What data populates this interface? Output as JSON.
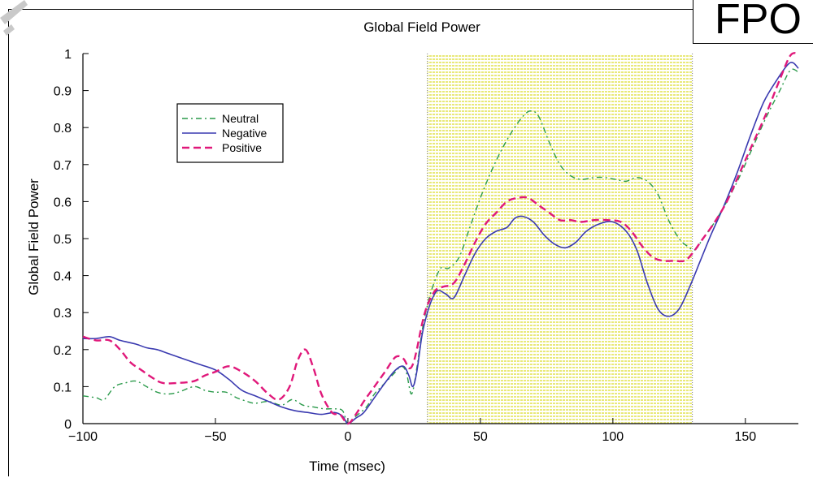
{
  "stamp": {
    "label": "FPO"
  },
  "chart_data": {
    "type": "line",
    "title": "Global Field Power",
    "xlabel": "Time (msec)",
    "ylabel": "Global Field Power",
    "xlim": [
      -100,
      170
    ],
    "ylim": [
      0,
      1
    ],
    "xticks": [
      -100,
      -50,
      0,
      50,
      100,
      150
    ],
    "xtick_labels": [
      "−100",
      "−50",
      "0",
      "50",
      "100",
      "150"
    ],
    "yticks": [
      0,
      0.1,
      0.2,
      0.3,
      0.4,
      0.5,
      0.6,
      0.7,
      0.8,
      0.9,
      1
    ],
    "ytick_labels": [
      "0",
      "0.1",
      "0.2",
      "0.3",
      "0.4",
      "0.5",
      "0.6",
      "0.7",
      "0.8",
      "0.9",
      "1"
    ],
    "grid": false,
    "legend_position": "top-left",
    "highlight_region": {
      "x": [
        30,
        130
      ],
      "color": "#e8e860"
    },
    "series": [
      {
        "name": "Neutral",
        "color": "#2a9a4a",
        "style": "dashdot",
        "points": [
          [
            -100,
            0.075
          ],
          [
            -95,
            0.07
          ],
          [
            -92,
            0.065
          ],
          [
            -88,
            0.1
          ],
          [
            -84,
            0.11
          ],
          [
            -80,
            0.115
          ],
          [
            -76,
            0.1
          ],
          [
            -72,
            0.085
          ],
          [
            -68,
            0.08
          ],
          [
            -64,
            0.085
          ],
          [
            -58,
            0.1
          ],
          [
            -54,
            0.09
          ],
          [
            -50,
            0.085
          ],
          [
            -46,
            0.085
          ],
          [
            -42,
            0.07
          ],
          [
            -38,
            0.06
          ],
          [
            -35,
            0.055
          ],
          [
            -30,
            0.06
          ],
          [
            -25,
            0.05
          ],
          [
            -21,
            0.065
          ],
          [
            -17,
            0.05
          ],
          [
            -13,
            0.045
          ],
          [
            -9,
            0.04
          ],
          [
            -5,
            0.04
          ],
          [
            -2,
            0.035
          ],
          [
            0,
            0.0
          ],
          [
            3,
            0.02
          ],
          [
            7,
            0.045
          ],
          [
            10,
            0.08
          ],
          [
            14,
            0.11
          ],
          [
            18,
            0.14
          ],
          [
            20,
            0.155
          ],
          [
            22,
            0.14
          ],
          [
            24,
            0.08
          ],
          [
            26,
            0.15
          ],
          [
            28,
            0.25
          ],
          [
            30,
            0.32
          ],
          [
            32,
            0.37
          ],
          [
            35,
            0.42
          ],
          [
            38,
            0.42
          ],
          [
            42,
            0.45
          ],
          [
            46,
            0.53
          ],
          [
            50,
            0.61
          ],
          [
            54,
            0.68
          ],
          [
            58,
            0.74
          ],
          [
            62,
            0.79
          ],
          [
            66,
            0.83
          ],
          [
            69,
            0.845
          ],
          [
            72,
            0.83
          ],
          [
            76,
            0.76
          ],
          [
            80,
            0.7
          ],
          [
            84,
            0.67
          ],
          [
            88,
            0.66
          ],
          [
            93,
            0.665
          ],
          [
            97,
            0.665
          ],
          [
            101,
            0.66
          ],
          [
            105,
            0.655
          ],
          [
            109,
            0.665
          ],
          [
            113,
            0.655
          ],
          [
            117,
            0.62
          ],
          [
            121,
            0.55
          ],
          [
            125,
            0.5
          ],
          [
            128,
            0.48
          ],
          [
            131,
            0.47
          ],
          [
            134,
            0.5
          ],
          [
            138,
            0.54
          ],
          [
            143,
            0.6
          ],
          [
            148,
            0.67
          ],
          [
            153,
            0.75
          ],
          [
            158,
            0.83
          ],
          [
            163,
            0.9
          ],
          [
            167,
            0.955
          ],
          [
            170,
            0.95
          ]
        ]
      },
      {
        "name": "Negative",
        "color": "#3a3ab0",
        "style": "solid",
        "points": [
          [
            -100,
            0.23
          ],
          [
            -95,
            0.23
          ],
          [
            -90,
            0.235
          ],
          [
            -86,
            0.225
          ],
          [
            -80,
            0.215
          ],
          [
            -76,
            0.205
          ],
          [
            -72,
            0.2
          ],
          [
            -68,
            0.19
          ],
          [
            -62,
            0.175
          ],
          [
            -56,
            0.16
          ],
          [
            -50,
            0.145
          ],
          [
            -45,
            0.12
          ],
          [
            -40,
            0.09
          ],
          [
            -35,
            0.075
          ],
          [
            -30,
            0.06
          ],
          [
            -25,
            0.045
          ],
          [
            -20,
            0.035
          ],
          [
            -15,
            0.03
          ],
          [
            -10,
            0.025
          ],
          [
            -5,
            0.03
          ],
          [
            -2,
            0.02
          ],
          [
            0,
            0.0
          ],
          [
            3,
            0.015
          ],
          [
            6,
            0.03
          ],
          [
            10,
            0.07
          ],
          [
            14,
            0.11
          ],
          [
            18,
            0.145
          ],
          [
            21,
            0.155
          ],
          [
            23,
            0.13
          ],
          [
            24.5,
            0.1
          ],
          [
            26,
            0.14
          ],
          [
            28,
            0.24
          ],
          [
            30,
            0.3
          ],
          [
            32,
            0.34
          ],
          [
            34,
            0.36
          ],
          [
            37,
            0.35
          ],
          [
            40,
            0.34
          ],
          [
            44,
            0.4
          ],
          [
            48,
            0.46
          ],
          [
            52,
            0.5
          ],
          [
            56,
            0.52
          ],
          [
            60,
            0.53
          ],
          [
            63,
            0.555
          ],
          [
            66,
            0.56
          ],
          [
            70,
            0.545
          ],
          [
            74,
            0.51
          ],
          [
            78,
            0.485
          ],
          [
            82,
            0.475
          ],
          [
            86,
            0.49
          ],
          [
            90,
            0.52
          ],
          [
            95,
            0.54
          ],
          [
            100,
            0.545
          ],
          [
            105,
            0.52
          ],
          [
            109,
            0.47
          ],
          [
            113,
            0.38
          ],
          [
            117,
            0.31
          ],
          [
            121,
            0.29
          ],
          [
            125,
            0.31
          ],
          [
            129,
            0.37
          ],
          [
            133,
            0.44
          ],
          [
            137,
            0.51
          ],
          [
            142,
            0.59
          ],
          [
            147,
            0.68
          ],
          [
            152,
            0.78
          ],
          [
            157,
            0.87
          ],
          [
            162,
            0.93
          ],
          [
            166,
            0.97
          ],
          [
            168,
            0.975
          ],
          [
            170,
            0.96
          ]
        ]
      },
      {
        "name": "Positive",
        "color": "#e0187a",
        "style": "dashed",
        "points": [
          [
            -100,
            0.235
          ],
          [
            -95,
            0.225
          ],
          [
            -90,
            0.225
          ],
          [
            -86,
            0.2
          ],
          [
            -82,
            0.165
          ],
          [
            -78,
            0.145
          ],
          [
            -74,
            0.125
          ],
          [
            -70,
            0.11
          ],
          [
            -64,
            0.11
          ],
          [
            -58,
            0.115
          ],
          [
            -54,
            0.13
          ],
          [
            -50,
            0.14
          ],
          [
            -45,
            0.155
          ],
          [
            -40,
            0.14
          ],
          [
            -35,
            0.115
          ],
          [
            -30,
            0.08
          ],
          [
            -26,
            0.065
          ],
          [
            -22,
            0.1
          ],
          [
            -19,
            0.17
          ],
          [
            -16,
            0.2
          ],
          [
            -13,
            0.15
          ],
          [
            -10,
            0.08
          ],
          [
            -6,
            0.03
          ],
          [
            -3,
            0.025
          ],
          [
            0,
            0.0
          ],
          [
            3,
            0.025
          ],
          [
            6,
            0.06
          ],
          [
            10,
            0.1
          ],
          [
            14,
            0.14
          ],
          [
            18,
            0.18
          ],
          [
            21,
            0.175
          ],
          [
            23,
            0.15
          ],
          [
            24.5,
            0.16
          ],
          [
            26,
            0.2
          ],
          [
            28,
            0.27
          ],
          [
            30,
            0.32
          ],
          [
            33,
            0.36
          ],
          [
            36,
            0.37
          ],
          [
            40,
            0.38
          ],
          [
            44,
            0.43
          ],
          [
            48,
            0.49
          ],
          [
            52,
            0.54
          ],
          [
            56,
            0.57
          ],
          [
            60,
            0.6
          ],
          [
            64,
            0.61
          ],
          [
            68,
            0.61
          ],
          [
            72,
            0.59
          ],
          [
            76,
            0.57
          ],
          [
            80,
            0.55
          ],
          [
            84,
            0.55
          ],
          [
            88,
            0.545
          ],
          [
            93,
            0.55
          ],
          [
            98,
            0.55
          ],
          [
            103,
            0.545
          ],
          [
            107,
            0.52
          ],
          [
            111,
            0.48
          ],
          [
            115,
            0.45
          ],
          [
            119,
            0.44
          ],
          [
            123,
            0.44
          ],
          [
            127,
            0.44
          ],
          [
            130,
            0.46
          ],
          [
            134,
            0.5
          ],
          [
            138,
            0.54
          ],
          [
            143,
            0.6
          ],
          [
            148,
            0.68
          ],
          [
            153,
            0.76
          ],
          [
            158,
            0.84
          ],
          [
            163,
            0.93
          ],
          [
            167,
            0.995
          ],
          [
            170,
            1.0
          ]
        ]
      }
    ]
  }
}
